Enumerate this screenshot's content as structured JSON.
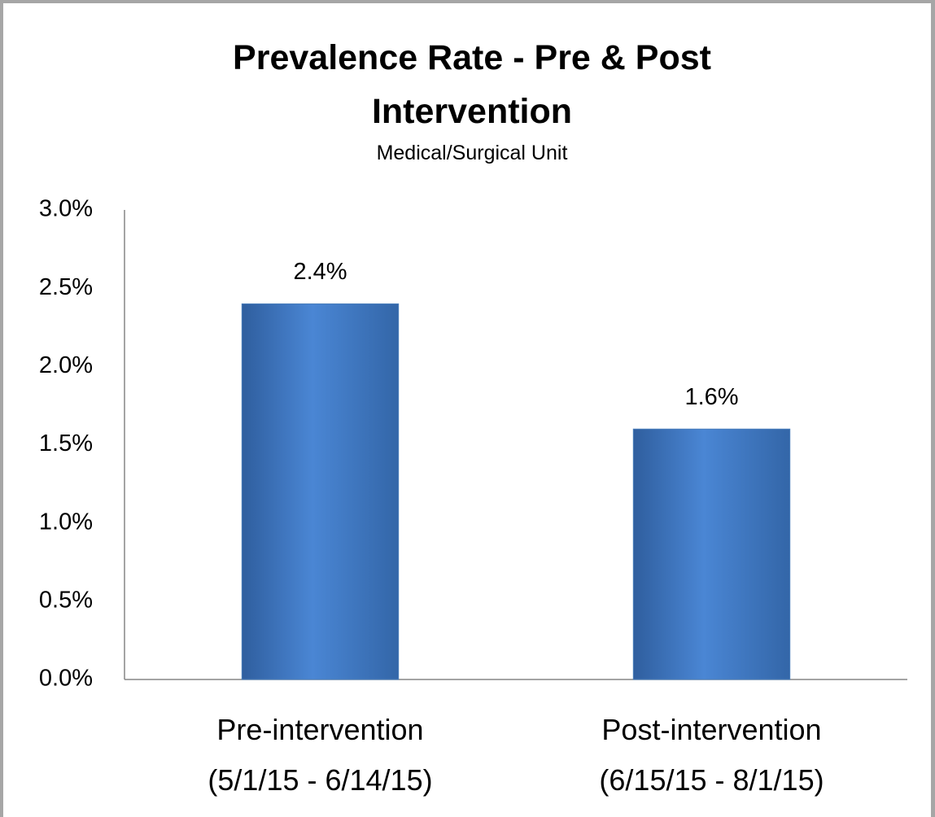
{
  "chart_data": {
    "type": "bar",
    "title": "Prevalence Rate - Pre & Post Intervention",
    "subtitle": "Medical/Surgical Unit",
    "categories": [
      "Pre-intervention\n(5/1/15 - 6/14/15)",
      "Post-intervention\n(6/15/15 - 8/1/15)"
    ],
    "values": [
      2.4,
      1.6
    ],
    "value_labels": [
      "2.4%",
      "1.6%"
    ],
    "color": "#4a7ebb",
    "ylim": [
      0,
      3
    ],
    "yticks": [
      {
        "value": 0,
        "label": "0.0%"
      },
      {
        "value": 0.5,
        "label": "0.5%"
      },
      {
        "value": 1,
        "label": "1.0%"
      },
      {
        "value": 1.5,
        "label": "1.5%"
      },
      {
        "value": 2,
        "label": "2.0%"
      },
      {
        "value": 2.5,
        "label": "2.5%"
      },
      {
        "value": 3,
        "label": "3.0%"
      }
    ],
    "grid": false
  }
}
